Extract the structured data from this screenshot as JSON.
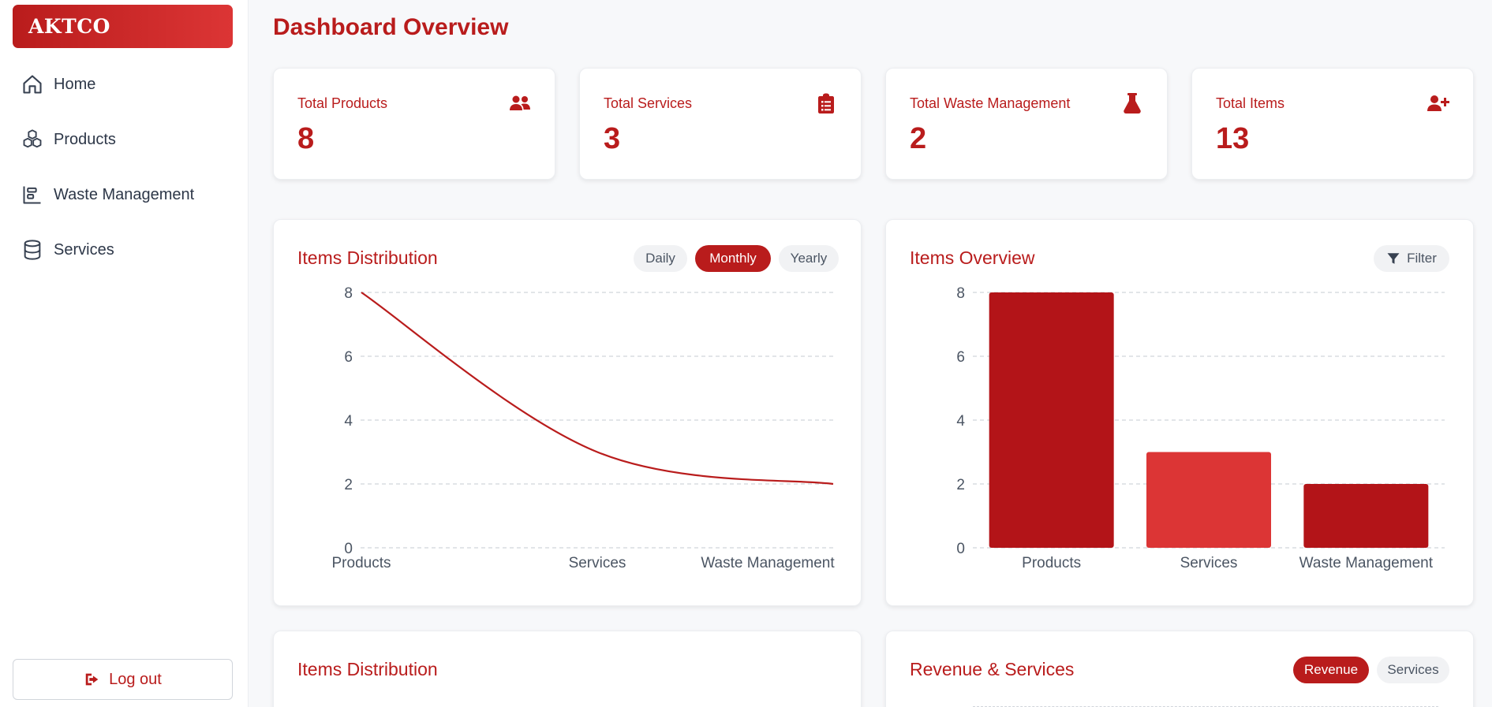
{
  "brand": {
    "name": "AKTCO"
  },
  "sidebar": {
    "items": [
      {
        "label": "Home",
        "icon": "home-icon"
      },
      {
        "label": "Products",
        "icon": "cubes-icon"
      },
      {
        "label": "Waste Management",
        "icon": "layers-icon"
      },
      {
        "label": "Services",
        "icon": "database-icon"
      }
    ],
    "logout_label": "Log out"
  },
  "page": {
    "title": "Dashboard Overview"
  },
  "stats": [
    {
      "label": "Total Products",
      "value": "8",
      "icon": "users-icon"
    },
    {
      "label": "Total Services",
      "value": "3",
      "icon": "clipboard-list-icon"
    },
    {
      "label": "Total Waste Management",
      "value": "2",
      "icon": "flask-icon"
    },
    {
      "label": "Total Items",
      "value": "13",
      "icon": "user-plus-icon"
    }
  ],
  "distribution_card": {
    "title": "Items Distribution",
    "tabs": [
      "Daily",
      "Monthly",
      "Yearly"
    ],
    "active_tab": "Monthly"
  },
  "overview_card": {
    "title": "Items Overview",
    "filter_label": "Filter"
  },
  "bottom_left_card": {
    "title": "Items Distribution"
  },
  "bottom_right_card": {
    "title": "Revenue & Services",
    "tabs": [
      "Revenue",
      "Services"
    ],
    "active_tab": "Revenue"
  },
  "colors": {
    "accent": "#b91c1c",
    "bar_products": "#b31418",
    "bar_services": "#dc3535",
    "bar_waste": "#b31418"
  },
  "chart_data": [
    {
      "type": "line",
      "categories": [
        "Products",
        "Services",
        "Waste Management"
      ],
      "values": [
        8,
        3,
        2
      ],
      "ylim": [
        0,
        8
      ],
      "yticks": [
        0,
        2,
        4,
        6,
        8
      ],
      "grid": true
    },
    {
      "type": "bar",
      "categories": [
        "Products",
        "Services",
        "Waste Management"
      ],
      "values": [
        8,
        3,
        2
      ],
      "ylim": [
        0,
        8
      ],
      "yticks": [
        0,
        2,
        4,
        6,
        8
      ],
      "grid": true
    }
  ]
}
